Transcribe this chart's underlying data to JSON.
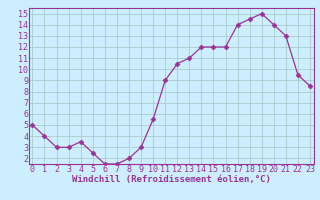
{
  "x": [
    0,
    1,
    2,
    3,
    4,
    5,
    6,
    7,
    8,
    9,
    10,
    11,
    12,
    13,
    14,
    15,
    16,
    17,
    18,
    19,
    20,
    21,
    22,
    23
  ],
  "y": [
    5.0,
    4.0,
    3.0,
    3.0,
    3.5,
    2.5,
    1.5,
    1.5,
    2.0,
    3.0,
    5.5,
    9.0,
    10.5,
    11.0,
    12.0,
    12.0,
    12.0,
    14.0,
    14.5,
    15.0,
    14.0,
    13.0,
    9.5,
    8.5
  ],
  "line_color": "#993399",
  "marker_color": "#993399",
  "bg_color": "#cceeff",
  "grid_color": "#aacccc",
  "axis_label_color": "#993399",
  "tick_color": "#993399",
  "xlabel": "Windchill (Refroidissement éolien,°C)",
  "spine_color": "#993399",
  "label_fontsize": 6.5,
  "tick_fontsize": 6,
  "yticks": [
    2,
    3,
    4,
    5,
    6,
    7,
    8,
    9,
    10,
    11,
    12,
    13,
    14,
    15
  ],
  "xticks": [
    0,
    1,
    2,
    3,
    4,
    5,
    6,
    7,
    8,
    9,
    10,
    11,
    12,
    13,
    14,
    15,
    16,
    17,
    18,
    19,
    20,
    21,
    22,
    23
  ],
  "xlim": [
    -0.3,
    23.3
  ],
  "ylim": [
    1.5,
    15.5
  ]
}
